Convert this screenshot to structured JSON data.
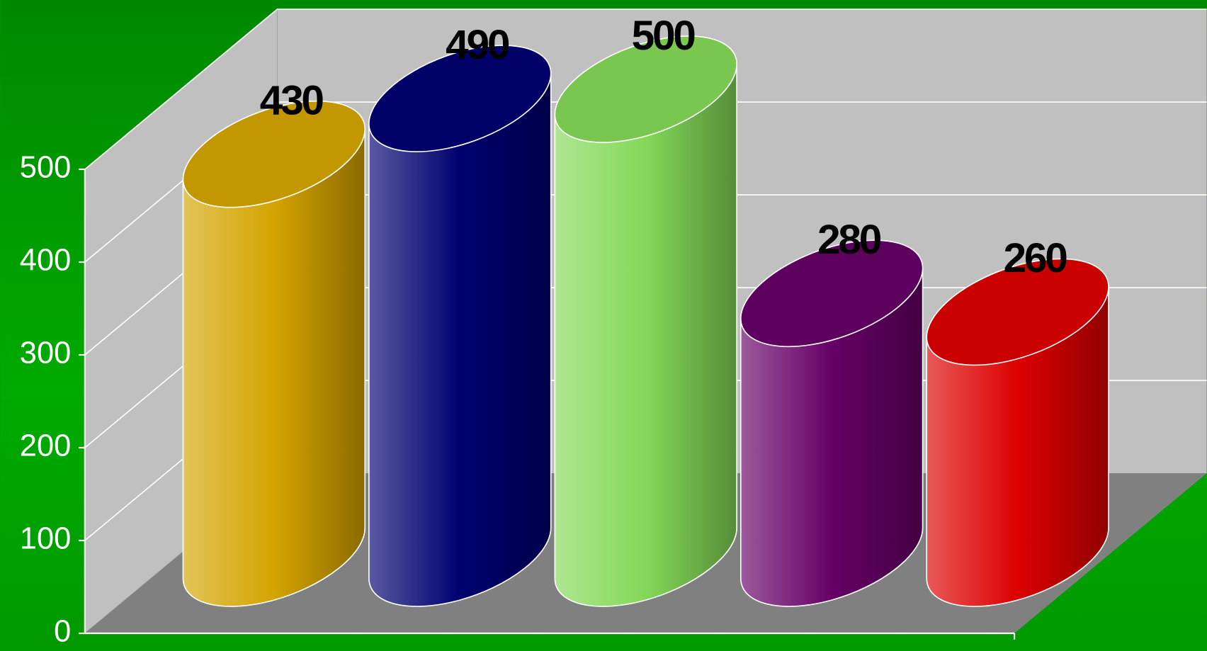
{
  "chart_data": {
    "type": "bar3d-cylinder",
    "values": [
      430,
      490,
      500,
      280,
      260
    ],
    "colors": [
      "#d4a400",
      "#000070",
      "#84d858",
      "#660066",
      "#dd0000"
    ],
    "ylim": [
      0,
      500
    ],
    "yticks": [
      0,
      100,
      200,
      300,
      400,
      500
    ],
    "grid": true
  }
}
